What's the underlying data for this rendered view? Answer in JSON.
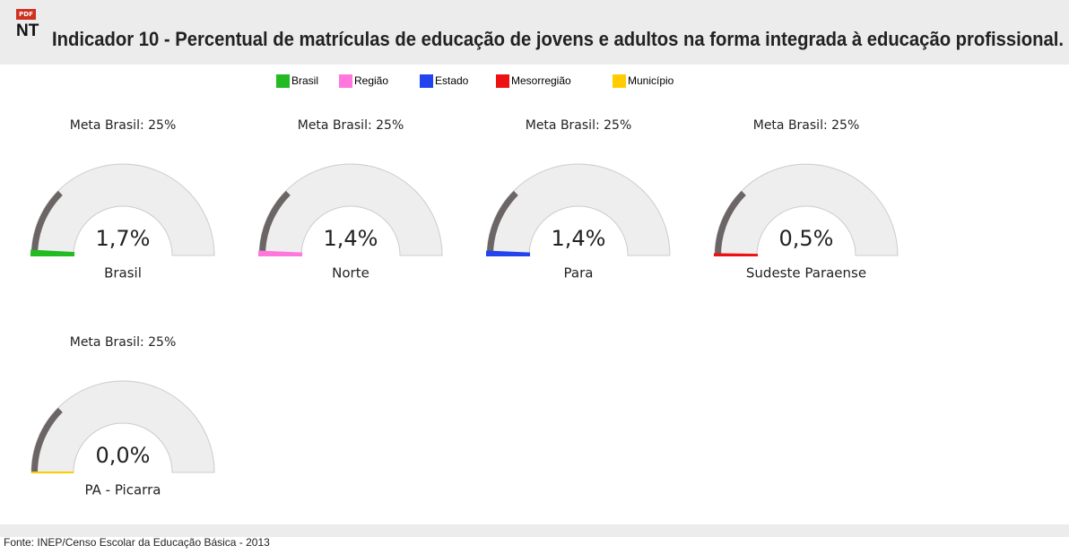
{
  "header": {
    "icon_text": "PDF",
    "badge": "NT",
    "title": "Indicador 10 - Percentual de matrículas de educação de jovens e adultos na forma integrada à educação profissional."
  },
  "legend": [
    {
      "name": "Brasil",
      "color": "#22bb22"
    },
    {
      "name": "Região",
      "color": "#ff77dd"
    },
    {
      "name": "Estado",
      "color": "#2244ee"
    },
    {
      "name": "Mesorregião",
      "color": "#ee1111"
    },
    {
      "name": "Município",
      "color": "#ffcc00"
    }
  ],
  "chart_data": [
    {
      "type": "gauge",
      "title": "Meta Brasil: 25%",
      "label": "Brasil",
      "values": [
        1.7
      ],
      "value_labels": [
        "1,7%"
      ],
      "color": "#22bb22",
      "target": 25,
      "ylim": [
        0,
        100
      ]
    },
    {
      "type": "gauge",
      "title": "Meta Brasil: 25%",
      "label": "Norte",
      "values": [
        1.4
      ],
      "value_labels": [
        "1,4%"
      ],
      "color": "#ff77dd",
      "target": 25,
      "ylim": [
        0,
        100
      ]
    },
    {
      "type": "gauge",
      "title": "Meta Brasil: 25%",
      "label": "Para",
      "values": [
        1.4
      ],
      "value_labels": [
        "1,4%"
      ],
      "color": "#2244ee",
      "target": 25,
      "ylim": [
        0,
        100
      ]
    },
    {
      "type": "gauge",
      "title": "Meta Brasil: 25%",
      "label": "Sudeste Paraense",
      "values": [
        0.5
      ],
      "value_labels": [
        "0,5%"
      ],
      "color": "#ee1111",
      "target": 25,
      "ylim": [
        0,
        100
      ]
    },
    {
      "type": "gauge",
      "title": "Meta Brasil: 25%",
      "label": "PA - Picarra",
      "values": [
        0
      ],
      "value_labels": [
        "0,0%"
      ],
      "color": "#ffcc00",
      "target": 25,
      "ylim": [
        0,
        100
      ]
    }
  ],
  "footer": {
    "source": "Fonte: INEP/Censo Escolar da Educação Básica - 2013"
  }
}
